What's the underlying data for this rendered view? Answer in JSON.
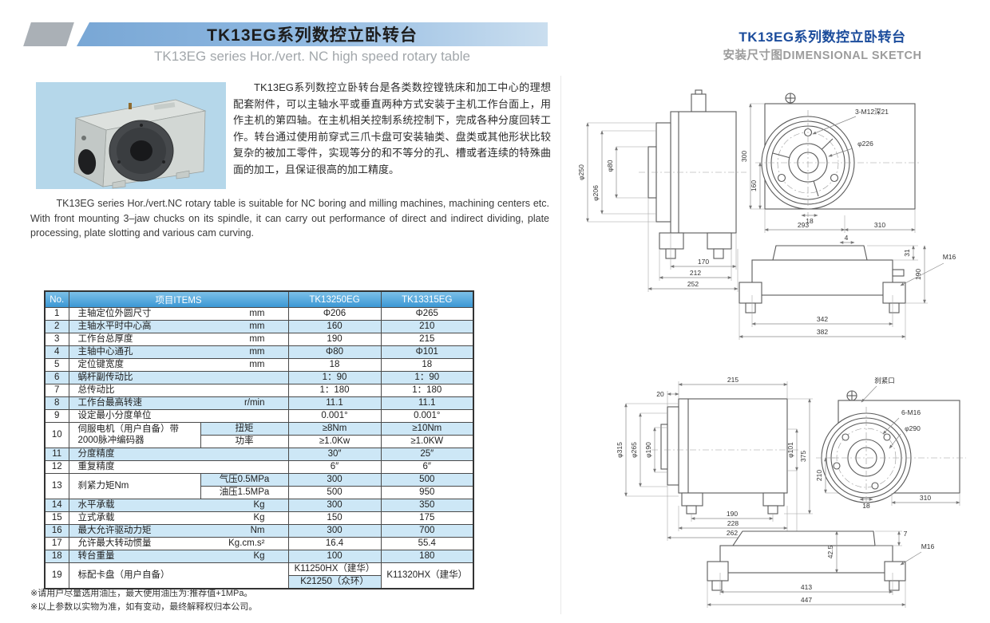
{
  "left": {
    "title": "TK13EG系列数控立卧转台",
    "subtitle": "TK13EG series Hor./vert. NC high speed rotary table",
    "intro_cn": "TK13EG系列数控立卧转台是各类数控镗铣床和加工中心的理想配套附件，可以主轴水平或垂直两种方式安装于主机工作台面上，用作主机的第四轴。在主机相关控制系统控制下，完成各种分度回转工作。转台通过使用前穿式三爪卡盘可安装轴类、盘类或其他形状比较复杂的被加工零件，实现等分的和不等分的孔、槽或者连续的特殊曲面的加工，且保证很高的加工精度。",
    "intro_en": "TK13EG series Hor./vert.NC rotary table is suitable for NC boring and milling machines, machining centers etc. With front mounting 3–jaw chucks on its spindle, it can carry out performance of direct and indirect dividing, plate processing, plate slotting and various cam curving.",
    "table": {
      "headers": [
        "No.",
        "项目ITEMS",
        "TK13250EG",
        "TK13315EG"
      ],
      "rows": [
        {
          "no": "1",
          "item": "主轴定位外圆尺寸",
          "unit": "mm",
          "v1": "Φ206",
          "v2": "Φ265"
        },
        {
          "no": "2",
          "item": "主轴水平时中心高",
          "unit": "mm",
          "v1": "160",
          "v2": "210"
        },
        {
          "no": "3",
          "item": "工作台总厚度",
          "unit": "mm",
          "v1": "190",
          "v2": "215"
        },
        {
          "no": "4",
          "item": "主轴中心通孔",
          "unit": "mm",
          "v1": "Φ80",
          "v2": "Φ101"
        },
        {
          "no": "5",
          "item": "定位键宽度",
          "unit": "mm",
          "v1": "18",
          "v2": "18"
        },
        {
          "no": "6",
          "item": "蜗杆副传动比",
          "unit": "",
          "v1": "1：90",
          "v2": "1：90"
        },
        {
          "no": "7",
          "item": "总传动比",
          "unit": "",
          "v1": "1：180",
          "v2": "1：180"
        },
        {
          "no": "8",
          "item": "工作台最高转速",
          "unit": "r/min",
          "v1": "11.1",
          "v2": "11.1"
        },
        {
          "no": "9",
          "item": "设定最小分度单位",
          "unit": "",
          "v1": "0.001°",
          "v2": "0.001°"
        },
        {
          "no": "10",
          "item": "伺服电机（用户自备）带2000脉冲编码器",
          "sub": [
            {
              "label": "扭矩",
              "v1": "≥8Nm",
              "v2": "≥10Nm"
            },
            {
              "label": "功率",
              "v1": "≥1.0Kw",
              "v2": "≥1.0KW"
            }
          ]
        },
        {
          "no": "11",
          "item": "分度精度",
          "unit": "",
          "v1": "30″",
          "v2": "25″"
        },
        {
          "no": "12",
          "item": "重复精度",
          "unit": "",
          "v1": "6″",
          "v2": "6″"
        },
        {
          "no": "13",
          "item": "刹紧力矩Nm",
          "sub": [
            {
              "label": "气压0.5MPa",
              "v1": "300",
              "v2": "500"
            },
            {
              "label": "油压1.5MPa",
              "v1": "500",
              "v2": "950"
            }
          ]
        },
        {
          "no": "14",
          "item": "水平承载",
          "unit": "Kg",
          "v1": "300",
          "v2": "350"
        },
        {
          "no": "15",
          "item": "立式承载",
          "unit": "Kg",
          "v1": "150",
          "v2": "175"
        },
        {
          "no": "16",
          "item": "最大允许驱动力矩",
          "unit": "Nm",
          "v1": "300",
          "v2": "700"
        },
        {
          "no": "17",
          "item": "允许最大转动惯量",
          "unit": "Kg.cm.s²",
          "v1": "16.4",
          "v2": "55.4"
        },
        {
          "no": "18",
          "item": "转台重量",
          "unit": "Kg",
          "v1": "100",
          "v2": "180"
        },
        {
          "no": "19",
          "item": "标配卡盘（用户自备）",
          "v1a": "K11250HX（建华）",
          "v1b": "K21250（众环）",
          "v2": "K11320HX（建华）"
        }
      ]
    },
    "footnotes": [
      "※请用户尽量选用油压，最大使用油压为:推荐值+1MPa。",
      "※以上参数以实物为准，如有变动，最终解释权归本公司。"
    ]
  },
  "right": {
    "title": "TK13EG系列数控立卧转台",
    "subtitle": "安装尺寸图DIMENSIONAL SKETCH",
    "sketch1": {
      "side": {
        "dia1": "φ250",
        "dia2": "φ206",
        "dia3": "φ80",
        "w1": "170",
        "w2": "212",
        "w3": "252"
      },
      "front": {
        "bolt_label": "3-M12深21",
        "bolt_circle": "φ226",
        "h_total": "300",
        "h_center": "160",
        "key": "18",
        "w_left": "293",
        "w_right": "310"
      },
      "bottom": {
        "w_inner": "342",
        "w_outer": "382",
        "h_plate": "31",
        "h_total": "190",
        "plate_offset": "4",
        "bolt": "M16"
      }
    },
    "sketch2": {
      "side": {
        "t_w": "215",
        "t_off": "20",
        "dia1": "φ315",
        "dia2": "φ265",
        "dia3": "φ190",
        "dia4": "φ101",
        "h_total": "375",
        "w1": "190",
        "w2": "228",
        "w3": "262"
      },
      "front": {
        "port": "刹紧口",
        "bolt": "6-M16",
        "bolt_circle": "φ290",
        "h_center": "210",
        "key": "18",
        "w_right": "310"
      },
      "bottom": {
        "v1": "42.5",
        "step": "7",
        "bolt": "M16",
        "w_inner": "413",
        "w_outer": "447"
      }
    },
    "colors": {
      "accent_blue": "#1b4c9c",
      "band_blue": "#79a7d5",
      "table_header": "#3b97d4",
      "row_blue": "#cde7f6"
    }
  }
}
